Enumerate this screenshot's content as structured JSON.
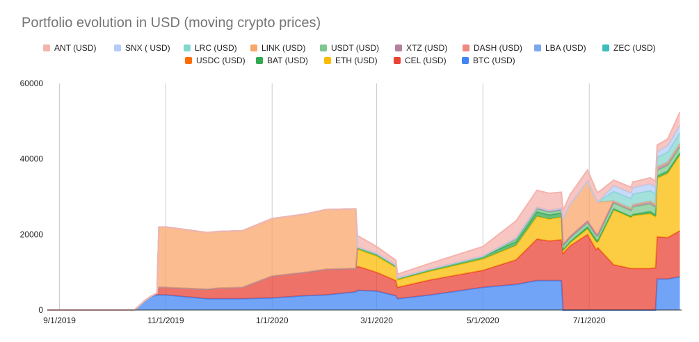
{
  "chart_data": {
    "type": "area",
    "stacked": true,
    "title": "Portfolio evolution in USD (moving crypto prices)",
    "xlabel": "",
    "ylabel": "",
    "ylim": [
      0,
      60000
    ],
    "yticks": [
      "0",
      "20000",
      "40000",
      "60000"
    ],
    "ytick_values": [
      0,
      20000,
      40000,
      60000
    ],
    "xlim": [
      "2019-08-25",
      "2020-08-23"
    ],
    "xticks": [
      "9/1/2019",
      "11/1/2019",
      "1/1/2020",
      "3/1/2020",
      "5/1/2020",
      "7/1/2020"
    ],
    "xtick_dates": [
      "2019-09-01",
      "2019-11-01",
      "2020-01-01",
      "2020-03-01",
      "2020-05-01",
      "2020-07-01"
    ],
    "grid": "vertical",
    "legend_position": "top",
    "legend": [
      {
        "name": "ANT (USD)",
        "color": "#f4b3ad"
      },
      {
        "name": "SNX ( USD)",
        "color": "#b4cdf7"
      },
      {
        "name": "LRC (USD)",
        "color": "#85d6d0"
      },
      {
        "name": "LINK (USD)",
        "color": "#f9a66a"
      },
      {
        "name": "USDT (USD)",
        "color": "#7cc98f"
      },
      {
        "name": "XTZ (USD)",
        "color": "#b57fa0"
      },
      {
        "name": "DASH (USD)",
        "color": "#ef8a7f"
      },
      {
        "name": "LBA (USD)",
        "color": "#7ba7ef"
      },
      {
        "name": "ZEC (USD)",
        "color": "#3fbcbc"
      },
      {
        "name": "USDC (USD)",
        "color": "#ff6d01"
      },
      {
        "name": "BAT (USD)",
        "color": "#34a853"
      },
      {
        "name": "ETH (USD)",
        "color": "#fbbc04"
      },
      {
        "name": "CEL (USD)",
        "color": "#ea4335"
      },
      {
        "name": "BTC (USD)",
        "color": "#4285f4"
      }
    ],
    "dates": [
      "2019-08-25",
      "2019-10-14",
      "2019-10-20",
      "2019-10-23",
      "2019-10-27",
      "2019-10-28",
      "2019-11-01",
      "2019-11-25",
      "2019-12-01",
      "2019-12-15",
      "2020-01-01",
      "2020-01-20",
      "2020-02-01",
      "2020-02-18",
      "2020-02-19",
      "2020-03-01",
      "2020-03-12",
      "2020-03-13",
      "2020-04-01",
      "2020-05-01",
      "2020-05-20",
      "2020-06-01",
      "2020-06-08",
      "2020-06-15",
      "2020-06-16",
      "2020-06-20",
      "2020-06-30",
      "2020-07-05",
      "2020-07-06",
      "2020-07-15",
      "2020-07-25",
      "2020-07-26",
      "2020-08-05",
      "2020-08-08",
      "2020-08-09",
      "2020-08-15",
      "2020-08-22"
    ],
    "series": [
      {
        "name": "BTC (USD)",
        "color": "#4285f4",
        "values": [
          0,
          0,
          2500,
          3500,
          4000,
          4000,
          4000,
          3000,
          3000,
          3000,
          3200,
          3800,
          4000,
          4800,
          5200,
          5000,
          3800,
          3000,
          4000,
          6000,
          6800,
          7800,
          7800,
          7800,
          0,
          0,
          0,
          0,
          0,
          0,
          0,
          0,
          0,
          0,
          8200,
          8200,
          8800
        ]
      },
      {
        "name": "CEL (USD)",
        "color": "#ea4335",
        "values": [
          0,
          0,
          0,
          0,
          500,
          2000,
          2000,
          2500,
          2800,
          3000,
          5800,
          6200,
          6800,
          6200,
          6400,
          5000,
          4000,
          3000,
          4000,
          4500,
          6500,
          11000,
          10500,
          10800,
          15000,
          17000,
          20000,
          16000,
          16500,
          12000,
          11000,
          11000,
          11000,
          11200,
          11200,
          11000,
          12200
        ]
      },
      {
        "name": "ETH (USD)",
        "color": "#fbbc04",
        "values": [
          0,
          0,
          0,
          0,
          0,
          0,
          0,
          0,
          0,
          0,
          0,
          0,
          0,
          0,
          4500,
          4300,
          3500,
          2000,
          2300,
          3000,
          3800,
          6000,
          5800,
          6000,
          700,
          800,
          1500,
          2000,
          1500,
          14500,
          13500,
          14000,
          14500,
          13500,
          15500,
          17000,
          20000
        ]
      },
      {
        "name": "BAT (USD)",
        "color": "#34a853",
        "values": [
          0,
          0,
          0,
          0,
          0,
          0,
          0,
          0,
          0,
          0,
          0,
          0,
          0,
          0,
          600,
          700,
          600,
          500,
          600,
          800,
          1000,
          1200,
          1100,
          1100,
          300,
          300,
          500,
          600,
          500,
          300,
          300,
          300,
          600,
          500,
          600,
          600,
          600
        ]
      },
      {
        "name": "USDT (USD)",
        "color": "#7cc98f",
        "values": [
          0,
          0,
          0,
          0,
          0,
          0,
          0,
          0,
          0,
          0,
          0,
          0,
          0,
          0,
          0,
          0,
          0,
          0,
          0,
          0,
          600,
          700,
          700,
          700,
          900,
          900,
          1000,
          1000,
          1000,
          1500,
          1500,
          2000,
          2000,
          2000,
          1500,
          1500,
          1500
        ]
      },
      {
        "name": "DASH (USD)",
        "color": "#ef8a7f",
        "values": [
          0,
          0,
          0,
          0,
          0,
          0,
          0,
          0,
          0,
          0,
          0,
          0,
          0,
          0,
          0,
          0,
          0,
          0,
          0,
          0,
          0,
          0,
          0,
          0,
          0,
          0,
          0,
          0,
          0,
          0,
          0,
          0,
          0,
          0,
          0,
          0,
          0
        ]
      },
      {
        "name": "XTZ (USD)",
        "color": "#b57fa0",
        "values": [
          0,
          0,
          0,
          0,
          0,
          0,
          0,
          0,
          0,
          0,
          0,
          0,
          0,
          0,
          0,
          0,
          0,
          0,
          0,
          0,
          400,
          500,
          500,
          500,
          500,
          500,
          600,
          600,
          600,
          600,
          600,
          600,
          700,
          700,
          900,
          900,
          1000
        ]
      },
      {
        "name": "LINK (USD)",
        "color": "#f9a66a",
        "values": [
          0,
          0,
          0,
          0,
          0,
          16000,
          16000,
          15000,
          15000,
          15000,
          15200,
          15400,
          15800,
          15800,
          0,
          0,
          0,
          0,
          0,
          0,
          0,
          0,
          0,
          0,
          7000,
          8500,
          10500,
          9000,
          8500,
          0,
          0,
          0,
          0,
          0,
          0,
          0,
          0
        ]
      },
      {
        "name": "LRC (USD)",
        "color": "#85d6d0",
        "values": [
          0,
          0,
          0,
          0,
          0,
          0,
          0,
          0,
          0,
          0,
          0,
          0,
          0,
          0,
          0,
          0,
          0,
          0,
          0,
          0,
          0,
          0,
          0,
          0,
          0,
          0,
          0,
          0,
          0,
          2500,
          2600,
          2800,
          2800,
          2800,
          2500,
          2600,
          2800
        ]
      },
      {
        "name": "SNX ( USD)",
        "color": "#b4cdf7",
        "values": [
          0,
          0,
          0,
          0,
          0,
          0,
          0,
          0,
          0,
          0,
          0,
          0,
          0,
          0,
          0,
          0,
          0,
          0,
          0,
          0,
          0,
          0,
          0,
          0,
          0,
          0,
          0,
          0,
          0,
          1500,
          1500,
          1700,
          1800,
          1800,
          1500,
          1700,
          2000
        ]
      },
      {
        "name": "ANT (USD)",
        "color": "#f4b3ad",
        "values": [
          0,
          0,
          0,
          0,
          0,
          0,
          0,
          0,
          0,
          0,
          0,
          0,
          0,
          0,
          3000,
          1800,
          1300,
          1000,
          1500,
          2500,
          4500,
          4500,
          4500,
          4300,
          2000,
          2500,
          3000,
          2500,
          2500,
          1500,
          1500,
          1500,
          1600,
          1600,
          1800,
          1800,
          3500
        ]
      }
    ]
  }
}
